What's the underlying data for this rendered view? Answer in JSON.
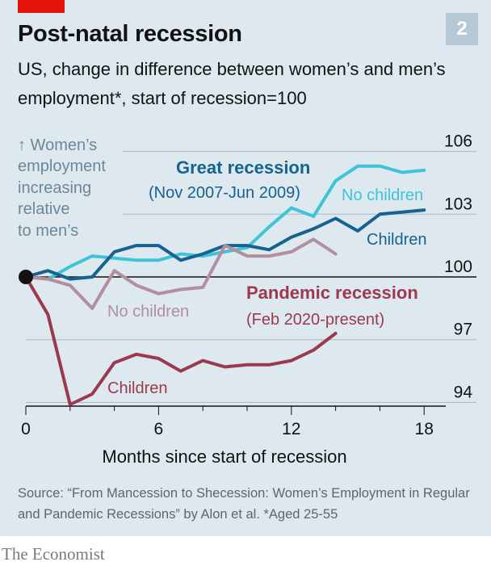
{
  "header": {
    "title": "Post-natal recession",
    "subtitle": "US, change in difference between women’s and men’s employment*, start of recession=100",
    "chart_number": "2"
  },
  "footer": {
    "source": "Source: “From Mancession to Shecession: Women’s Employment in Regular and Pandemic Recessions” by Alon et al.   *Aged 25-55",
    "brand": "The Economist"
  },
  "colors": {
    "background": "#dde8ef",
    "brand_red": "#e3120b",
    "great_no_children": "#3ec4d9",
    "great_children": "#17628f",
    "pandemic_no_children": "#b38e9c",
    "pandemic_children": "#9b3a4f",
    "gridline": "#aab8c2",
    "baseline": "#121212"
  },
  "chart_data": {
    "type": "line",
    "xlabel": "Months since start of recession",
    "ylabel_note": "↑ Women’s employment increasing relative to men’s",
    "xlim": [
      0,
      20
    ],
    "ylim": [
      93.5,
      107
    ],
    "x_ticks": [
      0,
      6,
      12,
      18
    ],
    "y_ticks": [
      94,
      97,
      100,
      103,
      106
    ],
    "y_tick_position": "right",
    "baseline": 100,
    "grid": true,
    "groups": [
      {
        "label": "Great recession",
        "sublabel": "(Nov 2007-Jun 2009)",
        "color": "#17628f"
      },
      {
        "label": "Pandemic recession",
        "sublabel": "(Feb 2020-present)",
        "color": "#9b3a4f"
      }
    ],
    "series": [
      {
        "name": "No children",
        "group": "Great recession",
        "color": "#3ec4d9",
        "x": [
          0,
          1,
          2,
          3,
          4,
          5,
          6,
          7,
          8,
          9,
          10,
          11,
          12,
          13,
          14,
          15,
          16,
          17,
          18
        ],
        "y": [
          100,
          99.9,
          100.5,
          101.0,
          100.9,
          100.8,
          100.8,
          101.1,
          101.0,
          101.2,
          101.4,
          102.4,
          103.3,
          102.9,
          104.6,
          105.3,
          105.3,
          105.0,
          105.1
        ]
      },
      {
        "name": "Children",
        "group": "Great recession",
        "color": "#17628f",
        "x": [
          0,
          1,
          2,
          3,
          4,
          5,
          6,
          7,
          8,
          9,
          10,
          11,
          12,
          13,
          14,
          15,
          16,
          17,
          18
        ],
        "y": [
          100,
          100.3,
          99.9,
          100.0,
          101.2,
          101.5,
          101.5,
          100.8,
          101.1,
          101.5,
          101.5,
          101.3,
          101.9,
          102.3,
          102.8,
          102.2,
          103.0,
          103.1,
          103.2
        ]
      },
      {
        "name": "No children",
        "group": "Pandemic recession",
        "color": "#b38e9c",
        "x": [
          0,
          1,
          2,
          3,
          4,
          5,
          6,
          7,
          8,
          9,
          10,
          11,
          12,
          13,
          14
        ],
        "y": [
          100,
          99.9,
          99.6,
          98.5,
          100.3,
          99.6,
          99.2,
          99.4,
          99.5,
          101.5,
          101.0,
          101.0,
          101.2,
          101.8,
          101.1
        ]
      },
      {
        "name": "Children",
        "group": "Pandemic recession",
        "color": "#9b3a4f",
        "x": [
          0,
          1,
          2,
          3,
          4,
          5,
          6,
          7,
          8,
          9,
          10,
          11,
          12,
          13,
          14
        ],
        "y": [
          100,
          98.2,
          93.9,
          94.4,
          95.9,
          96.3,
          96.1,
          95.5,
          96.0,
          95.7,
          95.8,
          95.8,
          96.0,
          96.5,
          97.3
        ]
      }
    ]
  }
}
